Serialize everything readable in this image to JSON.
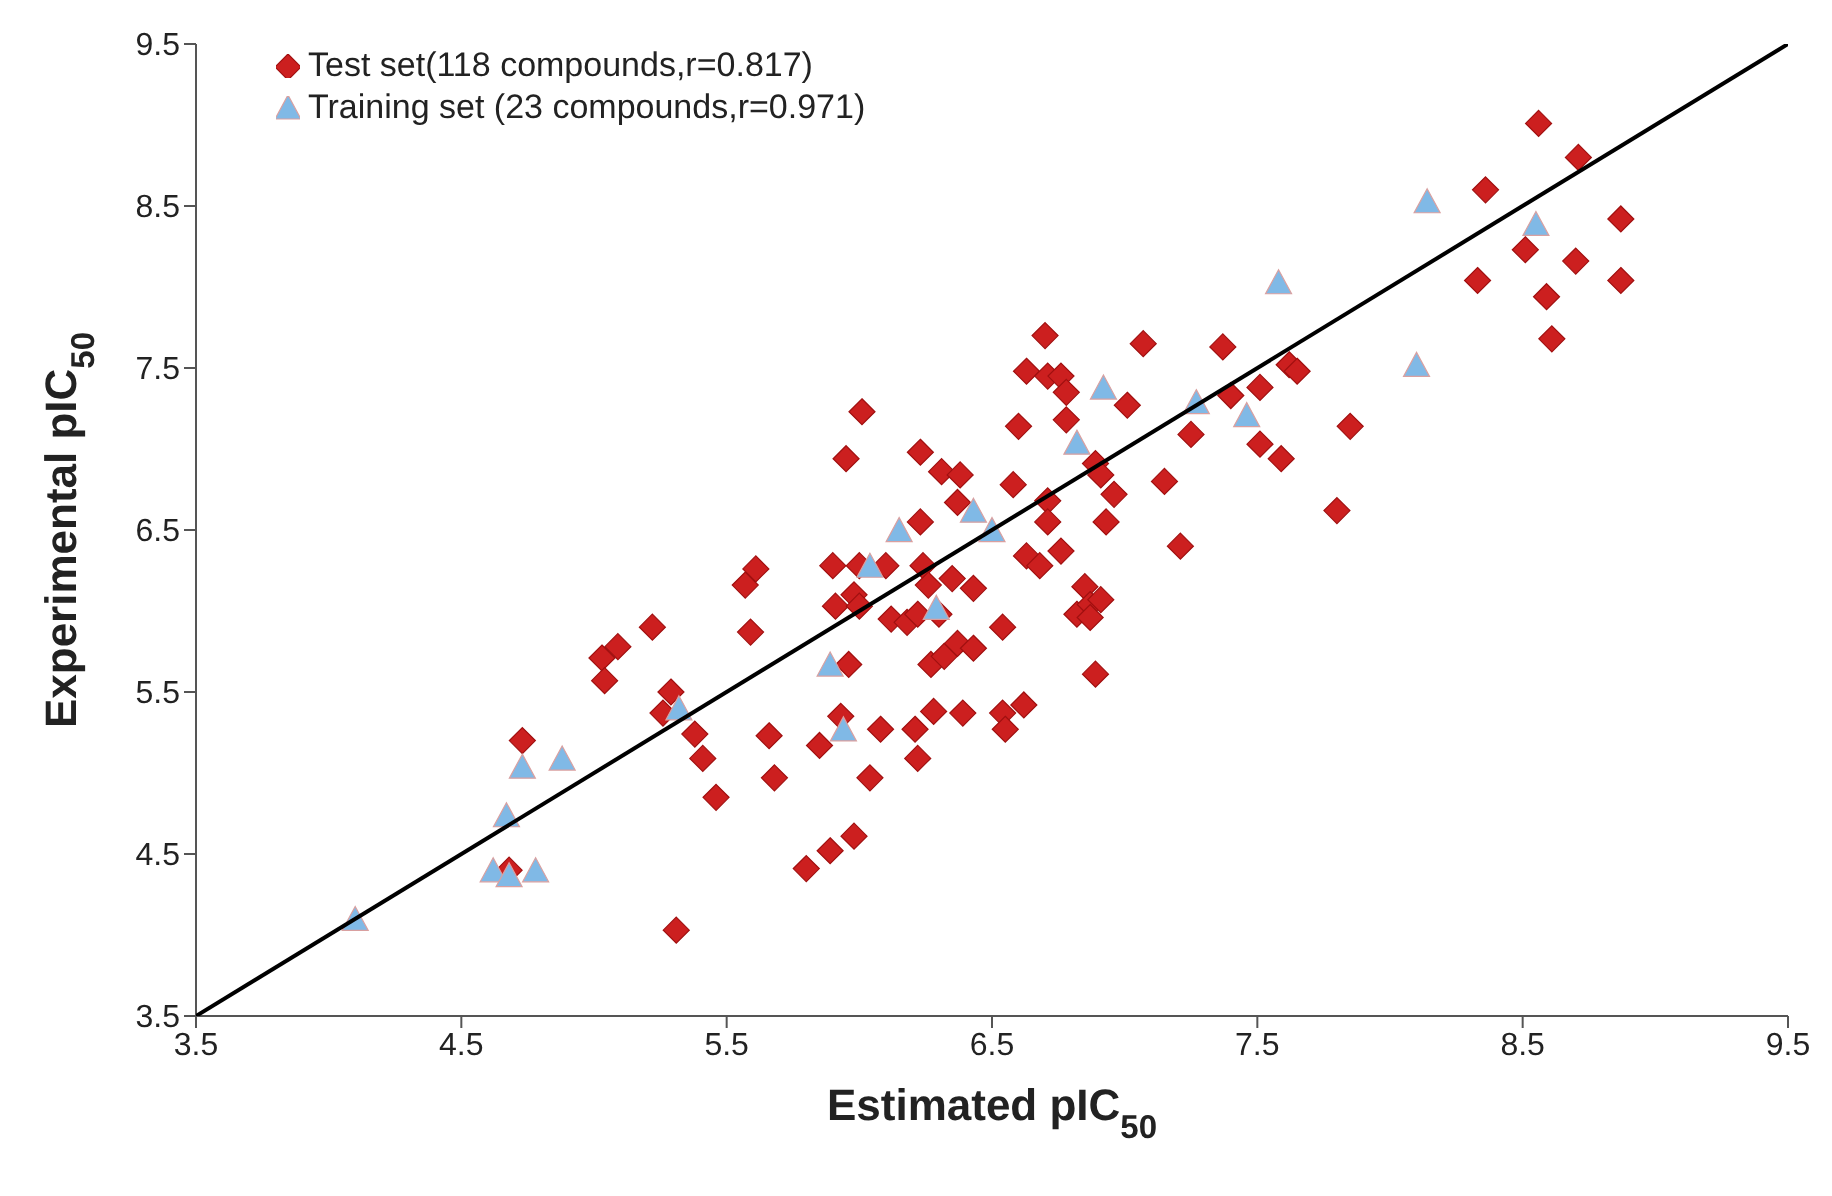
{
  "chart_data": {
    "type": "scatter",
    "xlabel": "Estimated pIC$_{50}$",
    "ylabel": "Experimental pIC$_{50}$",
    "xlim": [
      3.5,
      9.5
    ],
    "ylim": [
      3.5,
      9.5
    ],
    "xticks": [
      3.5,
      4.5,
      5.5,
      6.5,
      7.5,
      8.5,
      9.5
    ],
    "yticks": [
      3.5,
      4.5,
      5.5,
      6.5,
      7.5,
      8.5,
      9.5
    ],
    "legend": "top left",
    "series": [
      {
        "name": "Test set(118 compounds,r=0.817)",
        "color": "#cc1f1f",
        "marker": "diamond",
        "x": [
          6.7,
          6.63,
          6.71,
          6.76,
          6.78,
          6.01,
          6.6,
          6.78,
          5.95,
          6.23,
          6.31,
          6.38,
          6.58,
          6.37,
          6.71,
          6.96,
          6.23,
          6.71,
          6.93,
          6.89,
          5.61,
          5.57,
          5.9,
          6.0,
          6.1,
          6.24,
          6.63,
          6.68,
          6.76,
          5.91,
          5.98,
          6.0,
          6.26,
          6.35,
          6.43,
          6.85,
          6.82,
          6.87,
          6.91,
          6.87,
          5.59,
          5.22,
          5.09,
          5.03,
          5.04,
          6.12,
          6.18,
          6.22,
          6.3,
          6.54,
          5.96,
          6.27,
          6.32,
          6.37,
          6.43,
          5.29,
          5.26,
          6.89,
          5.38,
          5.41,
          5.46,
          4.73,
          5.66,
          5.68,
          5.85,
          5.93,
          6.08,
          6.04,
          6.21,
          6.22,
          6.28,
          6.39,
          6.54,
          6.55,
          6.62,
          5.8,
          5.89,
          5.98,
          5.31,
          4.68,
          8.33,
          8.59,
          8.87,
          8.61,
          7.07,
          7.37,
          7.01,
          7.4,
          7.51,
          7.62,
          7.65,
          7.25,
          7.51,
          7.59,
          7.85,
          6.91,
          7.15,
          7.21,
          7.8,
          8.56,
          8.71,
          8.36,
          8.87,
          8.51,
          8.7
        ],
        "values": [
          7.7,
          7.48,
          7.45,
          7.45,
          7.35,
          7.23,
          7.14,
          7.18,
          6.94,
          6.98,
          6.86,
          6.84,
          6.78,
          6.67,
          6.68,
          6.72,
          6.55,
          6.55,
          6.55,
          6.91,
          6.26,
          6.16,
          6.28,
          6.28,
          6.28,
          6.28,
          6.34,
          6.28,
          6.37,
          6.03,
          6.1,
          6.03,
          6.16,
          6.2,
          6.14,
          6.15,
          5.98,
          6.04,
          6.07,
          5.96,
          5.87,
          5.9,
          5.78,
          5.71,
          5.57,
          5.95,
          5.93,
          5.98,
          5.98,
          5.9,
          5.67,
          5.67,
          5.72,
          5.8,
          5.77,
          5.5,
          5.37,
          5.61,
          5.24,
          5.09,
          4.85,
          5.2,
          5.23,
          4.97,
          5.17,
          5.35,
          5.27,
          4.97,
          5.27,
          5.09,
          5.38,
          5.37,
          5.37,
          5.27,
          5.42,
          4.41,
          4.52,
          4.61,
          4.03,
          4.4,
          8.04,
          7.94,
          8.04,
          7.68,
          7.65,
          7.63,
          7.27,
          7.33,
          7.38,
          7.52,
          7.48,
          7.09,
          7.03,
          6.94,
          7.14,
          6.84,
          6.8,
          6.4,
          6.62,
          9.01,
          8.8,
          8.6,
          8.42,
          8.23,
          8.16
        ]
      },
      {
        "name": "Training set (23 compounds,r=0.971)",
        "color": "#80b9e6",
        "marker": "triangle",
        "x": [
          4.1,
          4.62,
          4.68,
          4.78,
          4.67,
          4.73,
          4.88,
          5.32,
          5.89,
          5.94,
          6.15,
          6.04,
          6.29,
          6.43,
          6.5,
          6.82,
          6.92,
          7.27,
          7.46,
          7.58,
          8.1,
          8.14,
          8.55
        ],
        "values": [
          4.09,
          4.39,
          4.36,
          4.39,
          4.73,
          5.03,
          5.08,
          5.39,
          5.66,
          5.26,
          6.49,
          6.27,
          6.01,
          6.61,
          6.49,
          7.03,
          7.37,
          7.28,
          7.2,
          8.02,
          7.51,
          8.52,
          8.38
        ]
      },
      {
        "type": "line",
        "color": "#000000",
        "x": [
          3.5,
          9.5
        ],
        "values": [
          3.5,
          9.5
        ]
      }
    ]
  }
}
